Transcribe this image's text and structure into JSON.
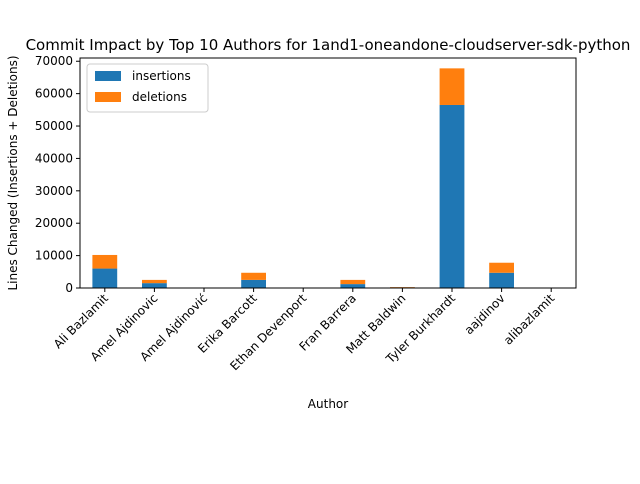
{
  "chart_data": {
    "type": "bar",
    "stacked": true,
    "title": "Commit Impact by Top 10 Authors for 1and1-oneandone-cloudserver-sdk-python",
    "xlabel": "Author",
    "ylabel": "Lines Changed (Insertions + Deletions)",
    "ylim": [
      0,
      71000
    ],
    "yticks": [
      0,
      10000,
      20000,
      30000,
      40000,
      50000,
      60000,
      70000
    ],
    "grid": false,
    "legend_position": "upper-left",
    "categories": [
      "Ali Bazlamit",
      "Amel Ajdinovic",
      "Amel Ajdinović",
      "Erika Barcott",
      "Ethan Devenport",
      "Fran Barrera",
      "Matt Baldwin",
      "Tyler Burkhardt",
      "aajdinov",
      "alibazlamit"
    ],
    "series": [
      {
        "name": "insertions",
        "color": "#1f77b4",
        "values": [
          6000,
          1500,
          0,
          2500,
          0,
          1200,
          200,
          56500,
          4700,
          0
        ]
      },
      {
        "name": "deletions",
        "color": "#ff7f0e",
        "values": [
          4200,
          1000,
          0,
          2200,
          0,
          1300,
          100,
          11300,
          3100,
          0
        ]
      }
    ]
  }
}
